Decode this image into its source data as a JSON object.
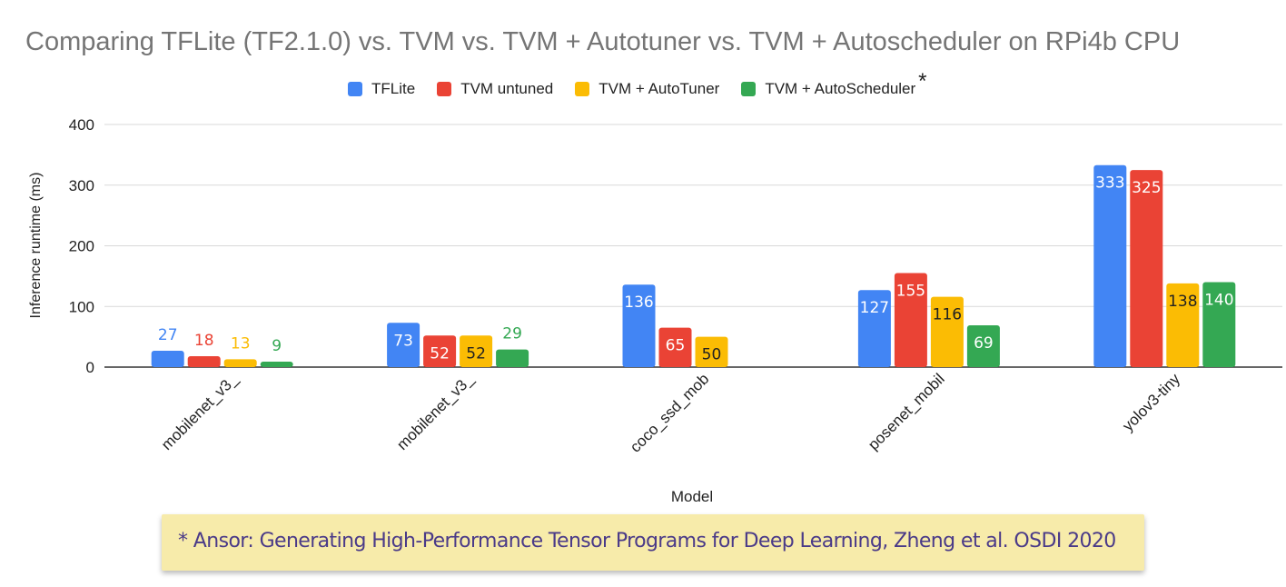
{
  "chart_data": {
    "type": "bar",
    "title": "Comparing TFLite (TF2.1.0) vs. TVM vs. TVM + Autotuner vs. TVM + Autoscheduler on RPi4b CPU",
    "xlabel": "Model",
    "ylabel": "Inference runtime (ms)",
    "ylim": [
      0,
      400
    ],
    "yticks": [
      "0",
      "100",
      "200",
      "300",
      "400"
    ],
    "grid": true,
    "legend_position": "top",
    "categories": [
      "mobilenet_v3_",
      "mobilenet_v3_",
      "coco_ssd_mob",
      "posenet_mobil",
      "yolov3-tiny"
    ],
    "series": [
      {
        "name": "TFLite",
        "color": "#4285f4",
        "values": [
          27,
          73,
          136,
          127,
          333
        ],
        "labels": [
          "27",
          "73",
          "136",
          "127",
          "333"
        ]
      },
      {
        "name": "TVM untuned",
        "color": "#ea4335",
        "values": [
          18,
          52,
          65,
          155,
          325
        ],
        "labels": [
          "18",
          "52",
          "65",
          "155",
          "325"
        ]
      },
      {
        "name": "TVM + AutoTuner",
        "color": "#fbbc04",
        "values": [
          13,
          52,
          50,
          116,
          138
        ],
        "labels": [
          "13",
          "52",
          "50",
          "116",
          "138"
        ]
      },
      {
        "name": "TVM + AutoScheduler",
        "color": "#34a853",
        "values": [
          9,
          29,
          null,
          69,
          140
        ],
        "labels": [
          "9",
          "29",
          "",
          "69",
          "140"
        ]
      }
    ]
  },
  "legend": {
    "items": [
      {
        "label": "TFLite",
        "color": "#4285f4"
      },
      {
        "label": "TVM untuned",
        "color": "#ea4335"
      },
      {
        "label": "TVM + AutoTuner",
        "color": "#fbbc04"
      },
      {
        "label": "TVM + AutoScheduler",
        "color": "#34a853"
      }
    ],
    "asterisk": "*"
  },
  "footnote": "* Ansor: Generating High-Performance Tensor Programs for Deep Learning, Zheng et al. OSDI 2020"
}
